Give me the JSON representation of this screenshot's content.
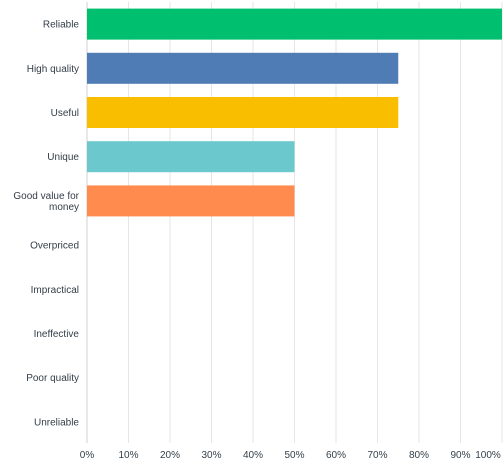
{
  "chart_data": {
    "type": "bar",
    "orientation": "horizontal",
    "categories": [
      "Reliable",
      "High quality",
      "Useful",
      "Unique",
      "Good value for money",
      "Overpriced",
      "Impractical",
      "Ineffective",
      "Poor quality",
      "Unreliable"
    ],
    "category_lines": [
      [
        "Reliable"
      ],
      [
        "High quality"
      ],
      [
        "Useful"
      ],
      [
        "Unique"
      ],
      [
        "Good value for",
        "money"
      ],
      [
        "Overpriced"
      ],
      [
        "Impractical"
      ],
      [
        "Ineffective"
      ],
      [
        "Poor quality"
      ],
      [
        "Unreliable"
      ]
    ],
    "values": [
      100,
      75,
      75,
      50,
      50,
      0,
      0,
      0,
      0,
      0
    ],
    "colors": [
      "#00bf6f",
      "#507cb6",
      "#f9be00",
      "#6bc8cd",
      "#ff8b4f",
      "#7f7fbf",
      "#d25f90",
      "#dee578",
      "#b5a3a3",
      "#a7a7a7"
    ],
    "xlim": [
      0,
      100
    ],
    "ticks": [
      0,
      10,
      20,
      30,
      40,
      50,
      60,
      70,
      80,
      90,
      100
    ],
    "tick_labels": [
      "0%",
      "10%",
      "20%",
      "30%",
      "40%",
      "50%",
      "60%",
      "70%",
      "80%",
      "90%",
      "100%"
    ],
    "grid": true,
    "title": "",
    "xlabel": "",
    "ylabel": ""
  }
}
